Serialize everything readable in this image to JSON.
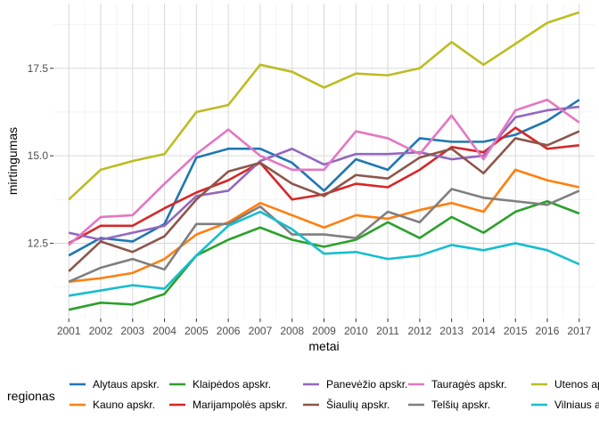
{
  "chart_data": {
    "type": "line",
    "xlabel": "metai",
    "ylabel": "mirtingumas",
    "xlim": [
      2001,
      2017
    ],
    "ylim": [
      10.35,
      19.35
    ],
    "yticks": [
      12.5,
      15.0,
      17.5
    ],
    "ytick_labels": [
      "12.5",
      "15.0",
      "17.5"
    ],
    "x": [
      2001,
      2002,
      2003,
      2004,
      2005,
      2006,
      2007,
      2008,
      2009,
      2010,
      2011,
      2012,
      2013,
      2014,
      2015,
      2016,
      2017
    ],
    "xtick_labels": [
      "2001",
      "2002",
      "2003",
      "2004",
      "2005",
      "2006",
      "2007",
      "2008",
      "2009",
      "2010",
      "2011",
      "2012",
      "2013",
      "2014",
      "2015",
      "2016",
      "2017"
    ],
    "grid": true,
    "legend": {
      "title": "regionas",
      "position": "bottom"
    },
    "series": [
      {
        "name": "Alytaus apskr.",
        "color": "#1f77b4",
        "values": [
          12.15,
          12.65,
          12.55,
          13.05,
          14.95,
          15.2,
          15.2,
          14.8,
          14.0,
          14.9,
          14.6,
          15.5,
          15.4,
          15.4,
          15.6,
          16.0,
          16.6
        ]
      },
      {
        "name": "Kauno apskr.",
        "color": "#ff7f0e",
        "values": [
          11.4,
          11.5,
          11.65,
          12.05,
          12.75,
          13.1,
          13.65,
          13.3,
          12.95,
          13.3,
          13.2,
          13.45,
          13.65,
          13.4,
          14.6,
          14.3,
          14.1
        ]
      },
      {
        "name": "Klaipėdos apskr.",
        "color": "#2ca02c",
        "values": [
          10.6,
          10.8,
          10.75,
          11.05,
          12.15,
          12.6,
          12.95,
          12.6,
          12.4,
          12.6,
          13.1,
          12.65,
          13.25,
          12.8,
          13.4,
          13.7,
          13.35
        ]
      },
      {
        "name": "Marijampolės apskr.",
        "color": "#d62728",
        "values": [
          12.5,
          13.0,
          13.0,
          13.5,
          13.95,
          14.3,
          14.8,
          13.75,
          13.9,
          14.2,
          14.1,
          14.6,
          15.25,
          15.1,
          15.8,
          15.2,
          15.3
        ]
      },
      {
        "name": "Panevėžio apskr.",
        "color": "#9467bd",
        "values": [
          12.8,
          12.6,
          12.8,
          13.0,
          13.85,
          14.0,
          14.85,
          15.2,
          14.75,
          15.05,
          15.05,
          15.1,
          14.9,
          15.0,
          16.1,
          16.3,
          16.4
        ]
      },
      {
        "name": "Šiaulių apskr.",
        "color": "#8c564b",
        "values": [
          11.7,
          12.55,
          12.25,
          12.7,
          13.75,
          14.55,
          14.8,
          14.2,
          13.85,
          14.45,
          14.35,
          14.95,
          15.2,
          14.5,
          15.5,
          15.3,
          15.7
        ]
      },
      {
        "name": "Tauragės apskr.",
        "color": "#e377c2",
        "values": [
          12.45,
          13.25,
          13.3,
          14.2,
          15.05,
          15.75,
          15.0,
          14.6,
          14.6,
          15.7,
          15.5,
          15.05,
          16.15,
          14.9,
          16.3,
          16.6,
          15.95
        ]
      },
      {
        "name": "Telšių apskr.",
        "color": "#7f7f7f",
        "values": [
          11.4,
          11.8,
          12.05,
          11.75,
          13.05,
          13.05,
          13.55,
          12.75,
          12.75,
          12.65,
          13.4,
          13.1,
          14.05,
          13.8,
          13.7,
          13.6,
          14.0
        ]
      },
      {
        "name": "Utenos apskr.",
        "color": "#bcbd22",
        "values": [
          13.75,
          14.6,
          14.85,
          15.05,
          16.25,
          16.45,
          17.6,
          17.4,
          16.95,
          17.35,
          17.3,
          17.5,
          18.25,
          17.6,
          18.2,
          18.8,
          19.1
        ]
      },
      {
        "name": "Vilniaus apskr.",
        "color": "#17becf",
        "values": [
          11.0,
          11.15,
          11.3,
          11.2,
          12.15,
          13.0,
          13.4,
          12.9,
          12.2,
          12.25,
          12.05,
          12.15,
          12.45,
          12.3,
          12.5,
          12.3,
          11.9
        ]
      }
    ]
  }
}
